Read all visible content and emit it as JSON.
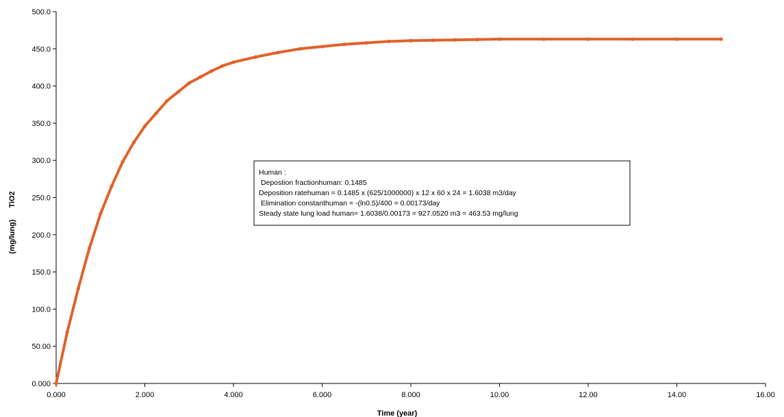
{
  "chart_data": {
    "type": "line",
    "title": "",
    "xlabel": "Time (year)",
    "ylabel_unit": "(mg/lung)",
    "ylabel": "TiO2",
    "xlim": [
      0,
      16
    ],
    "ylim": [
      0,
      500
    ],
    "x_ticks": [
      0,
      2,
      4,
      6,
      8,
      10,
      12,
      14,
      16
    ],
    "x_tick_labels": [
      "0.000",
      "2.000",
      "4.000",
      "6.000",
      "8.000",
      "10.00",
      "12.00",
      "14.00",
      "16.00"
    ],
    "y_ticks": [
      0,
      50,
      100,
      150,
      200,
      250,
      300,
      350,
      400,
      450,
      500
    ],
    "y_tick_labels": [
      "0.000",
      "50.00",
      "100.0",
      "150.0",
      "200.0",
      "250.0",
      "300.0",
      "350.0",
      "400.0",
      "450.0",
      "500.0"
    ],
    "grid": false,
    "legend": "none",
    "series_color": "#E0622A",
    "series": [
      {
        "x": [
          0,
          0.25,
          0.5,
          0.75,
          1,
          1.25,
          1.5,
          1.75,
          2,
          2.25,
          2.5,
          2.75,
          3,
          3.25,
          3.5,
          3.75,
          4,
          4.5,
          5,
          5.5,
          6,
          6.5,
          7,
          7.5,
          8,
          8.5,
          9,
          9.5,
          10,
          11,
          12,
          13,
          14,
          15
        ],
        "values": [
          0,
          69,
          128,
          182,
          228,
          265,
          298,
          324,
          346,
          363,
          380,
          392,
          404,
          412,
          420,
          427,
          432,
          439,
          445,
          450,
          453,
          456,
          458,
          460,
          461,
          461.5,
          462,
          462.5,
          463,
          463,
          463,
          463,
          463,
          463
        ]
      }
    ],
    "annotation": {
      "lines": [
        "Human :",
        " Depostion fractionhuman: 0.1485",
        "Deposition ratehuman = 0.1485 x (625/1000000) x 12 x 60 x 24 = 1.6038 m3/day",
        " Elimination constanthuman = -(ln0.5)/400 = 0.00173/day",
        "Steady state lung load human= 1.6038/0.00173 = 927.0520 m3 = 463.53 mg/lung"
      ]
    }
  }
}
